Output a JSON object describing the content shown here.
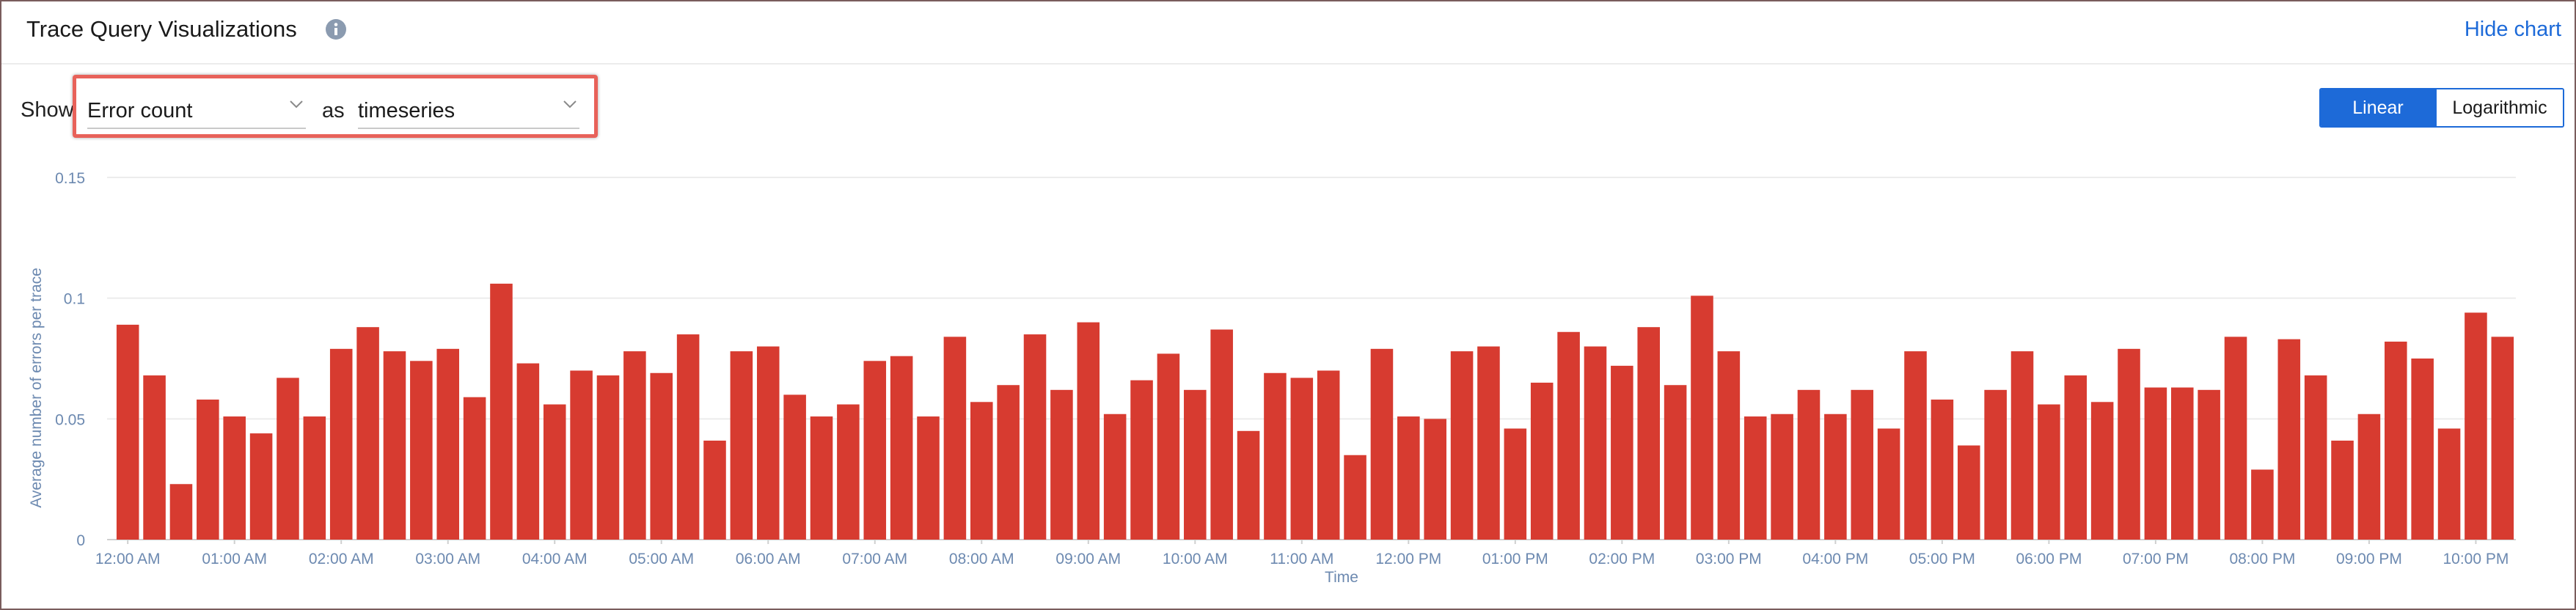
{
  "header": {
    "title": "Trace Query Visualizations",
    "info_icon": "info-circle-icon",
    "hide_chart_label": "Hide chart"
  },
  "controls": {
    "show_label": "Show",
    "metric_value": "Error count",
    "as_label": "as",
    "format_value": "timeseries",
    "scale_options": [
      "Linear",
      "Logarithmic"
    ],
    "scale_selected": "Linear"
  },
  "colors": {
    "bar": "#d73b30",
    "accent": "#1d6ad8",
    "highlight": "#e8625a",
    "axis_text": "#6c89b0"
  },
  "chart_data": {
    "type": "bar",
    "ylabel": "Average number of errors per trace",
    "xlabel": "Time",
    "ylim": [
      0,
      0.15
    ],
    "y_ticks": [
      0,
      0.05,
      0.1,
      0.15
    ],
    "y_tick_labels": [
      "0",
      "0.05",
      "0.1",
      "0.15"
    ],
    "x_ticks": [
      {
        "index": 0,
        "label": "12:00 AM"
      },
      {
        "index": 4,
        "label": "01:00 AM"
      },
      {
        "index": 8,
        "label": "02:00 AM"
      },
      {
        "index": 12,
        "label": "03:00 AM"
      },
      {
        "index": 16,
        "label": "04:00 AM"
      },
      {
        "index": 20,
        "label": "05:00 AM"
      },
      {
        "index": 24,
        "label": "06:00 AM"
      },
      {
        "index": 28,
        "label": "07:00 AM"
      },
      {
        "index": 32,
        "label": "08:00 AM"
      },
      {
        "index": 36,
        "label": "09:00 AM"
      },
      {
        "index": 40,
        "label": "10:00 AM"
      },
      {
        "index": 44,
        "label": "11:00 AM"
      },
      {
        "index": 48,
        "label": "12:00 PM"
      },
      {
        "index": 52,
        "label": "01:00 PM"
      },
      {
        "index": 56,
        "label": "02:00 PM"
      },
      {
        "index": 60,
        "label": "03:00 PM"
      },
      {
        "index": 64,
        "label": "04:00 PM"
      },
      {
        "index": 68,
        "label": "05:00 PM"
      },
      {
        "index": 72,
        "label": "06:00 PM"
      },
      {
        "index": 76,
        "label": "07:00 PM"
      },
      {
        "index": 80,
        "label": "08:00 PM"
      },
      {
        "index": 84,
        "label": "09:00 PM"
      },
      {
        "index": 88,
        "label": "10:00 PM"
      }
    ],
    "values": [
      0.089,
      0.068,
      0.023,
      0.058,
      0.051,
      0.044,
      0.067,
      0.051,
      0.079,
      0.088,
      0.078,
      0.074,
      0.079,
      0.059,
      0.106,
      0.073,
      0.056,
      0.07,
      0.068,
      0.078,
      0.069,
      0.085,
      0.041,
      0.078,
      0.08,
      0.06,
      0.051,
      0.056,
      0.074,
      0.076,
      0.051,
      0.084,
      0.057,
      0.064,
      0.085,
      0.062,
      0.09,
      0.052,
      0.066,
      0.077,
      0.062,
      0.087,
      0.045,
      0.069,
      0.067,
      0.07,
      0.035,
      0.079,
      0.051,
      0.05,
      0.078,
      0.08,
      0.046,
      0.065,
      0.086,
      0.08,
      0.072,
      0.088,
      0.064,
      0.101,
      0.078,
      0.051,
      0.052,
      0.062,
      0.052,
      0.062,
      0.046,
      0.078,
      0.058,
      0.039,
      0.062,
      0.078,
      0.056,
      0.068,
      0.057,
      0.079,
      0.063,
      0.063,
      0.062,
      0.084,
      0.029,
      0.083,
      0.068,
      0.041,
      0.052,
      0.082,
      0.075,
      0.046,
      0.094,
      0.084
    ],
    "grid": true,
    "legend": "none"
  }
}
